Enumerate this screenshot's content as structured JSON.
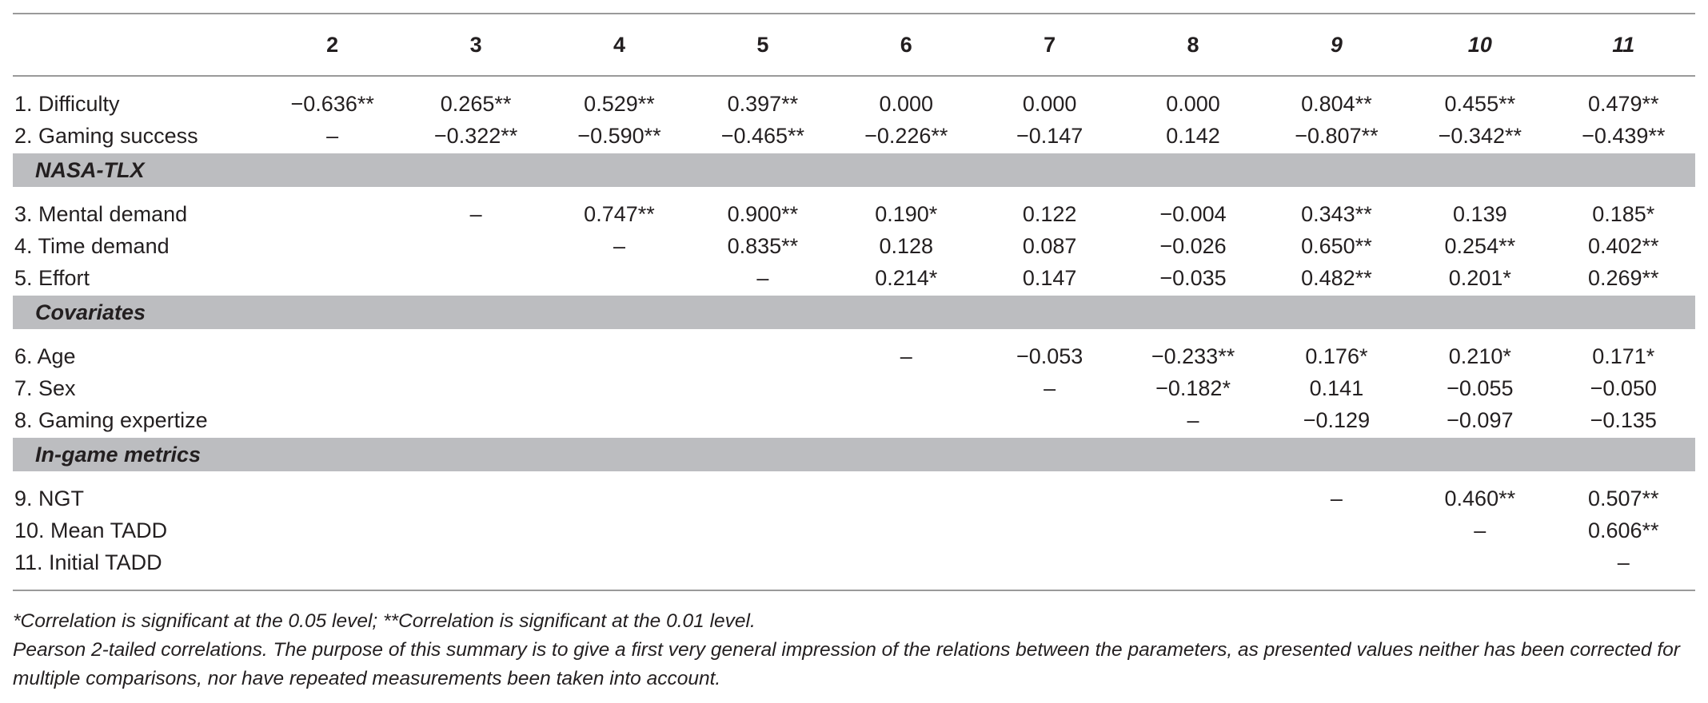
{
  "table": {
    "columns": [
      {
        "label": "2",
        "italic": false
      },
      {
        "label": "3",
        "italic": false
      },
      {
        "label": "4",
        "italic": false
      },
      {
        "label": "5",
        "italic": false
      },
      {
        "label": "6",
        "italic": false
      },
      {
        "label": "7",
        "italic": false
      },
      {
        "label": "8",
        "italic": false
      },
      {
        "label": "9",
        "italic": true
      },
      {
        "label": "10",
        "italic": true
      },
      {
        "label": "11",
        "italic": true
      }
    ],
    "groups": [
      {
        "section": "",
        "rows": [
          {
            "label": "1. Difficulty",
            "cells": [
              "−0.636**",
              "0.265**",
              "0.529**",
              "0.397**",
              "0.000",
              "0.000",
              "0.000",
              "0.804**",
              "0.455**",
              "0.479**"
            ]
          },
          {
            "label": "2. Gaming success",
            "cells": [
              "–",
              "−0.322**",
              "−0.590**",
              "−0.465**",
              "−0.226**",
              "−0.147",
              "0.142",
              "−0.807**",
              "−0.342**",
              "−0.439**"
            ]
          }
        ]
      },
      {
        "section": "NASA-TLX",
        "rows": [
          {
            "label": "3. Mental demand",
            "cells": [
              "",
              "–",
              "0.747**",
              "0.900**",
              "0.190*",
              "0.122",
              "−0.004",
              "0.343**",
              "0.139",
              "0.185*"
            ]
          },
          {
            "label": "4. Time demand",
            "cells": [
              "",
              "",
              "–",
              "0.835**",
              "0.128",
              "0.087",
              "−0.026",
              "0.650**",
              "0.254**",
              "0.402**"
            ]
          },
          {
            "label": "5. Effort",
            "cells": [
              "",
              "",
              "",
              "–",
              "0.214*",
              "0.147",
              "−0.035",
              "0.482**",
              "0.201*",
              "0.269**"
            ]
          }
        ]
      },
      {
        "section": "Covariates",
        "rows": [
          {
            "label": "6. Age",
            "cells": [
              "",
              "",
              "",
              "",
              "–",
              "−0.053",
              "−0.233**",
              "0.176*",
              "0.210*",
              "0.171*"
            ]
          },
          {
            "label": "7. Sex",
            "cells": [
              "",
              "",
              "",
              "",
              "",
              "–",
              "−0.182*",
              "0.141",
              "−0.055",
              "−0.050"
            ]
          },
          {
            "label": "8. Gaming expertize",
            "cells": [
              "",
              "",
              "",
              "",
              "",
              "",
              "–",
              "−0.129",
              "−0.097",
              "−0.135"
            ]
          }
        ]
      },
      {
        "section": "In-game metrics",
        "rows": [
          {
            "label": "9. NGT",
            "cells": [
              "",
              "",
              "",
              "",
              "",
              "",
              "",
              "–",
              "0.460**",
              "0.507**"
            ]
          },
          {
            "label": "10. Mean TADD",
            "cells": [
              "",
              "",
              "",
              "",
              "",
              "",
              "",
              "",
              "–",
              "0.606**"
            ]
          },
          {
            "label": "11. Initial TADD",
            "cells": [
              "",
              "",
              "",
              "",
              "",
              "",
              "",
              "",
              "",
              "–"
            ]
          }
        ]
      }
    ]
  },
  "footnotes": {
    "significance": "*Correlation is significant at the 0.05 level; **Correlation is significant at the 0.01 level.",
    "method": "Pearson 2-tailed correlations. The purpose of this summary is to give a first very general impression of the relations between the parameters, as presented values neither has been corrected for multiple comparisons, nor have repeated measurements been taken into account."
  }
}
